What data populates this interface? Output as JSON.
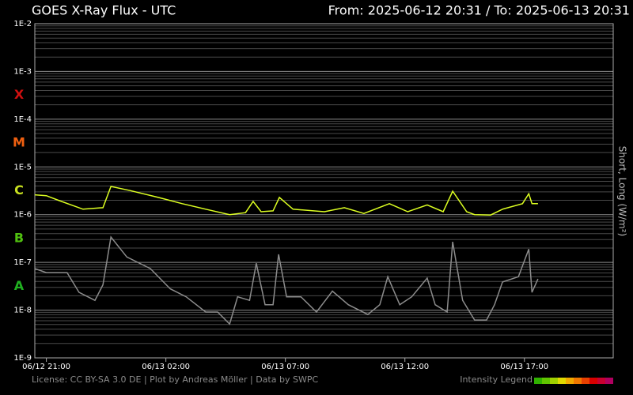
{
  "chart_data": {
    "type": "line",
    "title": "GOES X-Ray Flux - UTC",
    "subtitle": "From: 2025-06-12 20:31  /  To: 2025-06-13 20:31",
    "y2_label": "Short, Long (W/m²)",
    "log_scale": true,
    "grid": true,
    "minor_grid": true,
    "ylim": [
      1e-09,
      0.01
    ],
    "yticks": [
      {
        "value": 0.01,
        "label": "1E-2"
      },
      {
        "value": 0.001,
        "label": "1E-3"
      },
      {
        "value": 0.0001,
        "label": "1E-4"
      },
      {
        "value": 1e-05,
        "label": "1E-5"
      },
      {
        "value": 1e-06,
        "label": "1E-6"
      },
      {
        "value": 1e-07,
        "label": "1E-7"
      },
      {
        "value": 1e-08,
        "label": "1E-8"
      },
      {
        "value": 1e-09,
        "label": "1E-9"
      }
    ],
    "xlim": [
      "06/12 20:31",
      "06/13 20:31"
    ],
    "xticks": [
      "06/12 21:00",
      "06/13 02:00",
      "06/13 07:00",
      "06/13 12:00",
      "06/13 17:00"
    ],
    "flare_classes": [
      {
        "label": "X",
        "value": 0.0001,
        "color": "#d01010"
      },
      {
        "label": "M",
        "value": 1e-05,
        "color": "#f06010"
      },
      {
        "label": "C",
        "value": 1e-06,
        "color": "#c8e020"
      },
      {
        "label": "B",
        "value": 1e-07,
        "color": "#50c010"
      },
      {
        "label": "A",
        "value": 1e-08,
        "color": "#20b020"
      }
    ],
    "series": [
      {
        "color": "#ddff22",
        "x": [
          "06/12 20:31",
          "06/12 21:00",
          "06/12 21:30",
          "06/12 22:32",
          "06/12 23:22",
          "06/12 23:42",
          "06/13 00:30",
          "06/13 01:41",
          "06/13 02:41",
          "06/13 03:40",
          "06/13 04:40",
          "06/13 05:20",
          "06/13 05:39",
          "06/13 05:59",
          "06/13 06:29",
          "06/13 06:45",
          "06/13 07:19",
          "06/13 08:38",
          "06/13 09:28",
          "06/13 10:17",
          "06/13 11:21",
          "06/13 12:07",
          "06/13 12:56",
          "06/13 13:36",
          "06/13 14:00",
          "06/13 14:35",
          "06/13 14:55",
          "06/13 15:35",
          "06/13 16:05",
          "06/13 16:55",
          "06/13 17:11",
          "06/13 17:19",
          "06/13 17:34"
        ],
        "values": [
          2.6e-06,
          2.5e-06,
          2e-06,
          1.3e-06,
          1.4e-06,
          3.9e-06,
          3.2e-06,
          2.3e-06,
          1.7e-06,
          1.3e-06,
          1e-06,
          1.1e-06,
          1.9e-06,
          1.15e-06,
          1.2e-06,
          2.3e-06,
          1.3e-06,
          1.15e-06,
          1.4e-06,
          1.06e-06,
          1.7e-06,
          1.15e-06,
          1.6e-06,
          1.15e-06,
          3.1e-06,
          1.15e-06,
          1e-06,
          9.8e-07,
          1.3e-06,
          1.7e-06,
          2.75e-06,
          1.7e-06,
          1.7e-06
        ]
      },
      {
        "color": "#8c8c8c",
        "x": [
          "06/12 20:31",
          "06/12 21:00",
          "06/12 21:52",
          "06/12 22:22",
          "06/12 23:02",
          "06/12 23:22",
          "06/12 23:42",
          "06/13 00:22",
          "06/13 01:21",
          "06/13 02:11",
          "06/13 02:51",
          "06/13 03:40",
          "06/13 04:10",
          "06/13 04:40",
          "06/13 05:00",
          "06/13 05:30",
          "06/13 05:47",
          "06/13 06:09",
          "06/13 06:29",
          "06/13 06:43",
          "06/13 07:03",
          "06/13 07:39",
          "06/13 08:18",
          "06/13 08:58",
          "06/13 09:38",
          "06/13 10:27",
          "06/13 10:57",
          "06/13 11:17",
          "06/13 11:47",
          "06/13 12:17",
          "06/13 12:56",
          "06/13 13:16",
          "06/13 13:46",
          "06/13 14:00",
          "06/13 14:25",
          "06/13 14:55",
          "06/13 15:25",
          "06/13 15:45",
          "06/13 16:05",
          "06/13 16:45",
          "06/13 17:11",
          "06/13 17:19",
          "06/13 17:34"
        ],
        "values": [
          7.4e-08,
          6.1e-08,
          6.1e-08,
          2.35e-08,
          1.6e-08,
          3.4e-08,
          3.4e-07,
          1.3e-07,
          7.4e-08,
          2.8e-08,
          1.9e-08,
          9.1e-09,
          9.1e-09,
          5.1e-09,
          1.9e-08,
          1.6e-08,
          9.6e-08,
          1.3e-08,
          1.3e-08,
          1.47e-07,
          1.9e-08,
          1.9e-08,
          9.1e-09,
          2.5e-08,
          1.3e-08,
          8.1e-09,
          1.3e-08,
          5e-08,
          1.3e-08,
          1.9e-08,
          4.7e-08,
          1.3e-08,
          9.1e-09,
          2.7e-07,
          1.6e-08,
          6.2e-09,
          6.2e-09,
          1.3e-08,
          3.9e-08,
          5e-08,
          1.9e-07,
          2.35e-08,
          4.5e-08
        ]
      }
    ],
    "footer": "License: CC BY-SA 3.0 DE | Plot by Andreas Möller | Data by SWPC",
    "intensity_legend": "Intensity Legend",
    "intensity_colors": [
      "#30b000",
      "#60c400",
      "#a0d000",
      "#e0d800",
      "#f0a800",
      "#f07800",
      "#e84000",
      "#d80000",
      "#c80030",
      "#b00060"
    ]
  }
}
